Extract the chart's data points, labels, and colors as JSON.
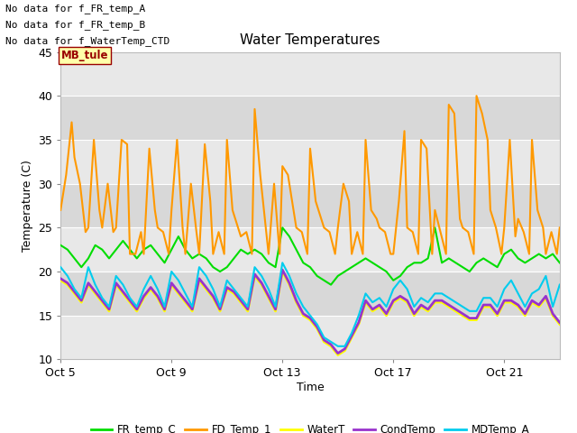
{
  "title": "Water Temperatures",
  "xlabel": "Time",
  "ylabel": "Temperature (C)",
  "ylim": [
    10,
    45
  ],
  "yticks": [
    10,
    15,
    20,
    25,
    30,
    35,
    40,
    45
  ],
  "background_color": "#ffffff",
  "plot_bg_color": "#d8d8d8",
  "grid_color": "#ffffff",
  "band_colors": [
    "#e8e8e8",
    "#d8d8d8"
  ],
  "no_data_texts": [
    "No data for f_FR_temp_A",
    "No data for f_FR_temp_B",
    "No data for f_WaterTemp_CTD"
  ],
  "mb_tule_label": "MB_tule",
  "mb_tule_color": "#990000",
  "mb_tule_bg": "#ffffaa",
  "legend_entries": [
    {
      "label": "FR_temp_C",
      "color": "#00dd00"
    },
    {
      "label": "FD_Temp_1",
      "color": "#ff9900"
    },
    {
      "label": "WaterT",
      "color": "#ffff00"
    },
    {
      "label": "CondTemp",
      "color": "#9933cc"
    },
    {
      "label": "MDTemp_A",
      "color": "#00ccee"
    }
  ],
  "xtick_labels": [
    "Oct 5",
    "Oct 9",
    "Oct 13",
    "Oct 17",
    "Oct 21"
  ],
  "xtick_positions": [
    0,
    4,
    8,
    12,
    16
  ],
  "band_edges": [
    10,
    15,
    20,
    25,
    30,
    35,
    40,
    45
  ],
  "series": {
    "FR_temp_C": {
      "color": "#00dd00",
      "lw": 1.5,
      "x": [
        0.0,
        0.25,
        0.5,
        0.75,
        1.0,
        1.25,
        1.5,
        1.75,
        2.0,
        2.25,
        2.5,
        2.75,
        3.0,
        3.25,
        3.5,
        3.75,
        4.0,
        4.25,
        4.5,
        4.75,
        5.0,
        5.25,
        5.5,
        5.75,
        6.0,
        6.25,
        6.5,
        6.75,
        7.0,
        7.25,
        7.5,
        7.75,
        8.0,
        8.25,
        8.5,
        8.75,
        9.0,
        9.25,
        9.5,
        9.75,
        10.0,
        10.25,
        10.5,
        10.75,
        11.0,
        11.25,
        11.5,
        11.75,
        12.0,
        12.25,
        12.5,
        12.75,
        13.0,
        13.25,
        13.5,
        13.75,
        14.0,
        14.25,
        14.5,
        14.75,
        15.0,
        15.25,
        15.5,
        15.75,
        16.0,
        16.25,
        16.5,
        16.75,
        17.0,
        17.25,
        17.5,
        17.75,
        18.0
      ],
      "y": [
        23.0,
        22.5,
        21.5,
        20.5,
        21.5,
        23.0,
        22.5,
        21.5,
        22.5,
        23.5,
        22.5,
        21.5,
        22.5,
        23.0,
        22.0,
        21.0,
        22.5,
        24.0,
        22.5,
        21.5,
        22.0,
        21.5,
        20.5,
        20.0,
        20.5,
        21.5,
        22.5,
        22.0,
        22.5,
        22.0,
        21.0,
        20.5,
        25.0,
        24.0,
        22.5,
        21.0,
        20.5,
        19.5,
        19.0,
        18.5,
        19.5,
        20.0,
        20.5,
        21.0,
        21.5,
        21.0,
        20.5,
        20.0,
        19.0,
        19.5,
        20.5,
        21.0,
        21.0,
        21.5,
        25.0,
        21.0,
        21.5,
        21.0,
        20.5,
        20.0,
        21.0,
        21.5,
        21.0,
        20.5,
        22.0,
        22.5,
        21.5,
        21.0,
        21.5,
        22.0,
        21.5,
        22.0,
        21.0
      ]
    },
    "FD_Temp_1": {
      "color": "#ff9900",
      "lw": 1.5,
      "x": [
        0.0,
        0.2,
        0.4,
        0.5,
        0.7,
        0.9,
        1.0,
        1.2,
        1.4,
        1.5,
        1.7,
        1.9,
        2.0,
        2.2,
        2.4,
        2.5,
        2.7,
        2.9,
        3.0,
        3.2,
        3.4,
        3.5,
        3.7,
        3.9,
        4.0,
        4.2,
        4.4,
        4.5,
        4.7,
        4.9,
        5.0,
        5.2,
        5.4,
        5.5,
        5.7,
        5.9,
        6.0,
        6.2,
        6.4,
        6.5,
        6.7,
        6.9,
        7.0,
        7.2,
        7.4,
        7.5,
        7.7,
        7.9,
        8.0,
        8.2,
        8.4,
        8.5,
        8.7,
        8.9,
        9.0,
        9.2,
        9.4,
        9.5,
        9.7,
        9.9,
        10.0,
        10.2,
        10.4,
        10.5,
        10.7,
        10.9,
        11.0,
        11.2,
        11.4,
        11.5,
        11.7,
        11.9,
        12.0,
        12.2,
        12.4,
        12.5,
        12.7,
        12.9,
        13.0,
        13.2,
        13.4,
        13.5,
        13.7,
        13.9,
        14.0,
        14.2,
        14.4,
        14.5,
        14.7,
        14.9,
        15.0,
        15.2,
        15.4,
        15.5,
        15.7,
        15.9,
        16.0,
        16.2,
        16.4,
        16.5,
        16.7,
        16.9,
        17.0,
        17.2,
        17.4,
        17.5,
        17.7,
        17.9,
        18.0
      ],
      "y": [
        27.0,
        31.0,
        37.0,
        33.0,
        30.0,
        24.5,
        25.0,
        35.0,
        27.0,
        25.0,
        30.0,
        24.5,
        25.0,
        35.0,
        34.5,
        22.0,
        22.0,
        24.5,
        22.0,
        34.0,
        27.0,
        25.0,
        24.5,
        22.0,
        27.0,
        35.0,
        25.0,
        22.0,
        30.0,
        24.5,
        22.0,
        34.5,
        28.0,
        22.0,
        24.5,
        22.0,
        35.0,
        27.0,
        25.0,
        24.0,
        24.5,
        22.0,
        38.5,
        31.0,
        25.0,
        22.0,
        30.0,
        22.0,
        32.0,
        31.0,
        27.0,
        25.0,
        24.5,
        22.0,
        34.0,
        28.0,
        26.0,
        25.0,
        24.5,
        22.0,
        25.0,
        30.0,
        28.0,
        22.0,
        24.5,
        22.0,
        35.0,
        27.0,
        26.0,
        25.0,
        24.5,
        22.0,
        22.0,
        28.0,
        36.0,
        25.0,
        24.5,
        22.0,
        35.0,
        34.0,
        22.0,
        27.0,
        24.5,
        22.0,
        39.0,
        38.0,
        26.0,
        25.0,
        24.5,
        22.0,
        40.0,
        38.0,
        35.0,
        27.0,
        25.0,
        22.0,
        25.0,
        35.0,
        24.0,
        26.0,
        24.5,
        22.0,
        35.0,
        27.0,
        25.0,
        22.0,
        24.5,
        22.0,
        25.0
      ]
    },
    "WaterT": {
      "color": "#ffff00",
      "lw": 2.0,
      "x": [
        0.0,
        0.25,
        0.5,
        0.75,
        1.0,
        1.25,
        1.5,
        1.75,
        2.0,
        2.25,
        2.5,
        2.75,
        3.0,
        3.25,
        3.5,
        3.75,
        4.0,
        4.25,
        4.5,
        4.75,
        5.0,
        5.25,
        5.5,
        5.75,
        6.0,
        6.25,
        6.5,
        6.75,
        7.0,
        7.25,
        7.5,
        7.75,
        8.0,
        8.25,
        8.5,
        8.75,
        9.0,
        9.25,
        9.5,
        9.75,
        10.0,
        10.25,
        10.5,
        10.75,
        11.0,
        11.25,
        11.5,
        11.75,
        12.0,
        12.25,
        12.5,
        12.75,
        13.0,
        13.25,
        13.5,
        13.75,
        14.0,
        14.25,
        14.5,
        14.75,
        15.0,
        15.25,
        15.5,
        15.75,
        16.0,
        16.25,
        16.5,
        16.75,
        17.0,
        17.25,
        17.5,
        17.75,
        18.0
      ],
      "y": [
        19.0,
        18.5,
        17.5,
        16.5,
        18.5,
        17.5,
        16.5,
        15.5,
        18.5,
        17.5,
        16.5,
        15.5,
        17.0,
        18.0,
        17.0,
        15.5,
        18.5,
        17.5,
        16.5,
        15.5,
        19.0,
        18.0,
        17.0,
        15.5,
        18.0,
        17.5,
        16.5,
        15.5,
        19.5,
        18.5,
        17.0,
        15.5,
        20.0,
        18.5,
        16.5,
        15.0,
        14.5,
        13.5,
        12.0,
        11.5,
        10.5,
        11.0,
        12.5,
        14.0,
        16.5,
        15.5,
        16.0,
        15.0,
        16.5,
        17.0,
        16.5,
        15.0,
        16.0,
        15.5,
        16.5,
        16.5,
        16.0,
        15.5,
        15.0,
        14.5,
        14.5,
        16.0,
        16.0,
        15.0,
        16.5,
        16.5,
        16.0,
        15.0,
        16.5,
        16.0,
        17.0,
        15.0,
        14.0
      ]
    },
    "CondTemp": {
      "color": "#9933cc",
      "lw": 2.0,
      "x": [
        0.0,
        0.25,
        0.5,
        0.75,
        1.0,
        1.25,
        1.5,
        1.75,
        2.0,
        2.25,
        2.5,
        2.75,
        3.0,
        3.25,
        3.5,
        3.75,
        4.0,
        4.25,
        4.5,
        4.75,
        5.0,
        5.25,
        5.5,
        5.75,
        6.0,
        6.25,
        6.5,
        6.75,
        7.0,
        7.25,
        7.5,
        7.75,
        8.0,
        8.25,
        8.5,
        8.75,
        9.0,
        9.25,
        9.5,
        9.75,
        10.0,
        10.25,
        10.5,
        10.75,
        11.0,
        11.25,
        11.5,
        11.75,
        12.0,
        12.25,
        12.5,
        12.75,
        13.0,
        13.25,
        13.5,
        13.75,
        14.0,
        14.25,
        14.5,
        14.75,
        15.0,
        15.25,
        15.5,
        15.75,
        16.0,
        16.25,
        16.5,
        16.75,
        17.0,
        17.25,
        17.5,
        17.75,
        18.0
      ],
      "y": [
        19.2,
        18.7,
        17.7,
        16.7,
        18.7,
        17.7,
        16.7,
        15.7,
        18.7,
        17.7,
        16.7,
        15.7,
        17.2,
        18.2,
        17.2,
        15.7,
        18.7,
        17.7,
        16.7,
        15.7,
        19.2,
        18.2,
        17.2,
        15.7,
        18.2,
        17.7,
        16.7,
        15.7,
        19.7,
        18.7,
        17.2,
        15.7,
        20.2,
        18.7,
        16.7,
        15.2,
        14.7,
        13.7,
        12.2,
        11.7,
        10.7,
        11.2,
        12.7,
        14.2,
        16.7,
        15.7,
        16.2,
        15.2,
        16.7,
        17.2,
        16.7,
        15.2,
        16.2,
        15.7,
        16.7,
        16.7,
        16.2,
        15.7,
        15.2,
        14.7,
        14.7,
        16.2,
        16.2,
        15.2,
        16.7,
        16.7,
        16.2,
        15.2,
        16.7,
        16.2,
        17.2,
        15.2,
        14.2
      ]
    },
    "MDTemp_A": {
      "color": "#00ccee",
      "lw": 1.5,
      "x": [
        0.0,
        0.25,
        0.5,
        0.75,
        1.0,
        1.25,
        1.5,
        1.75,
        2.0,
        2.25,
        2.5,
        2.75,
        3.0,
        3.25,
        3.5,
        3.75,
        4.0,
        4.25,
        4.5,
        4.75,
        5.0,
        5.25,
        5.5,
        5.75,
        6.0,
        6.25,
        6.5,
        6.75,
        7.0,
        7.25,
        7.5,
        7.75,
        8.0,
        8.25,
        8.5,
        8.75,
        9.0,
        9.25,
        9.5,
        9.75,
        10.0,
        10.25,
        10.5,
        10.75,
        11.0,
        11.25,
        11.5,
        11.75,
        12.0,
        12.25,
        12.5,
        12.75,
        13.0,
        13.25,
        13.5,
        13.75,
        14.0,
        14.25,
        14.5,
        14.75,
        15.0,
        15.25,
        15.5,
        15.75,
        16.0,
        16.25,
        16.5,
        16.75,
        17.0,
        17.25,
        17.5,
        17.75,
        18.0
      ],
      "y": [
        20.5,
        19.5,
        18.0,
        17.0,
        20.5,
        18.5,
        17.0,
        16.0,
        19.5,
        18.5,
        17.0,
        16.0,
        18.0,
        19.5,
        18.0,
        16.0,
        20.0,
        19.0,
        17.5,
        16.0,
        20.5,
        19.5,
        18.0,
        16.0,
        19.0,
        18.0,
        17.0,
        16.0,
        20.5,
        19.5,
        18.0,
        16.0,
        21.0,
        19.5,
        17.5,
        16.0,
        15.0,
        14.0,
        12.5,
        12.0,
        11.5,
        11.5,
        13.0,
        15.0,
        17.5,
        16.5,
        17.0,
        16.0,
        18.0,
        19.0,
        18.0,
        16.0,
        17.0,
        16.5,
        17.5,
        17.5,
        17.0,
        16.5,
        16.0,
        15.5,
        15.5,
        17.0,
        17.0,
        16.0,
        18.0,
        19.0,
        17.5,
        16.0,
        17.5,
        18.0,
        19.5,
        16.0,
        18.5
      ]
    }
  }
}
